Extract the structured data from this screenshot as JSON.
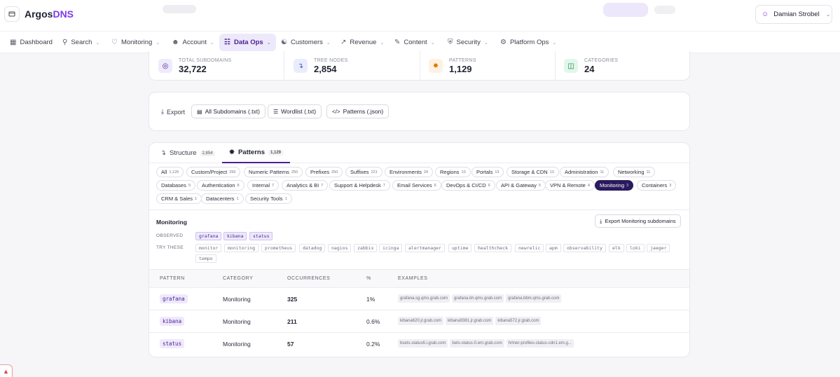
{
  "app": {
    "brand_main": "Argos",
    "brand_accent": "DNS"
  },
  "user": {
    "name": "Damian Strobel"
  },
  "nav": [
    {
      "label": "Dashboard",
      "icon": "dashboard-icon"
    },
    {
      "label": "Search",
      "icon": "search-icon"
    },
    {
      "label": "Monitoring",
      "icon": "monitoring-icon"
    },
    {
      "label": "Account",
      "icon": "user-icon"
    },
    {
      "label": "Data Ops",
      "icon": "database-icon"
    },
    {
      "label": "Customers",
      "icon": "users-icon"
    },
    {
      "label": "Revenue",
      "icon": "chart-line-icon"
    },
    {
      "label": "Content",
      "icon": "pen-icon"
    },
    {
      "label": "Security",
      "icon": "shield-icon"
    },
    {
      "label": "Platform Ops",
      "icon": "gear-icon"
    }
  ],
  "stats": [
    {
      "label": "TOTAL SUBDOMAINS",
      "value": "32,722"
    },
    {
      "label": "TREE NODES",
      "value": "2,854"
    },
    {
      "label": "PATTERNS",
      "value": "1,129"
    },
    {
      "label": "CATEGORIES",
      "value": "24"
    }
  ],
  "export": {
    "label": "Export",
    "buttons": [
      "All Subdomains (.txt)",
      "Wordlist (.txt)",
      "Patterns (.json)"
    ]
  },
  "tabs": [
    {
      "label": "Structure",
      "count": "2,854"
    },
    {
      "label": "Patterns",
      "count": "1,129"
    }
  ],
  "categories": [
    {
      "label": "All",
      "count": "1,129"
    },
    {
      "label": "Custom/Project",
      "count": "250"
    },
    {
      "label": "Numeric Patterns",
      "count": "250"
    },
    {
      "label": "Prefixes",
      "count": "250"
    },
    {
      "label": "Suffixes",
      "count": "221"
    },
    {
      "label": "Environments",
      "count": "24"
    },
    {
      "label": "Regions",
      "count": "10"
    },
    {
      "label": "Portals",
      "count": "13"
    },
    {
      "label": "Storage & CDN",
      "count": "13"
    },
    {
      "label": "Administration",
      "count": "11"
    },
    {
      "label": "Networking",
      "count": "11"
    },
    {
      "label": "Databases",
      "count": "9"
    },
    {
      "label": "Authentication",
      "count": "8"
    },
    {
      "label": "Internal",
      "count": "7"
    },
    {
      "label": "Analytics & BI",
      "count": "7"
    },
    {
      "label": "Support & Helpdesk",
      "count": "7"
    },
    {
      "label": "Email Services",
      "count": "6"
    },
    {
      "label": "DevOps & CI/CD",
      "count": "6"
    },
    {
      "label": "API & Gateway",
      "count": "5"
    },
    {
      "label": "VPN & Remote",
      "count": "4"
    },
    {
      "label": "Monitoring",
      "count": "3"
    },
    {
      "label": "Containers",
      "count": "3"
    },
    {
      "label": "CRM & Sales",
      "count": "1"
    },
    {
      "label": "Datacenters",
      "count": "1"
    },
    {
      "label": "Security Tools",
      "count": "1"
    }
  ],
  "selected": {
    "title": "Monitoring",
    "export_label": "Export Monitoring subdomains",
    "observed_label": "OBSERVED",
    "try_label": "TRY THESE",
    "observed": [
      "grafana",
      "kibana",
      "status"
    ],
    "try": [
      "monitor",
      "monitoring",
      "prometheus",
      "datadog",
      "nagios",
      "zabbix",
      "icinga",
      "alertmanager",
      "uptime",
      "healthcheck",
      "newrelic",
      "apm",
      "observability",
      "elk",
      "loki",
      "jaeger",
      "tempo"
    ]
  },
  "table": {
    "headers": [
      "PATTERN",
      "CATEGORY",
      "OCCURRENCES",
      "%",
      "EXAMPLES"
    ],
    "rows": [
      {
        "pattern": "grafana",
        "category": "Monitoring",
        "occurrences": "325",
        "pct": "1%",
        "examples": [
          "grafana.sg.qms.grab.com",
          "grafana.kh.qms.grab.com",
          "grafana.bbm.qms.grab.com"
        ]
      },
      {
        "pattern": "kibana",
        "category": "Monitoring",
        "occurrences": "211",
        "pct": "0.6%",
        "examples": [
          "kibana620.jr.grab.com",
          "kibana9381.jr.grab.com",
          "kibana572.jr.grab.com"
        ]
      },
      {
        "pattern": "status",
        "category": "Monitoring",
        "occurrences": "57",
        "pct": "0.2%",
        "examples": [
          "bsets-status6.i.grab.com",
          "bets-status-0.em.grab.com",
          "hrtner-profiles-status-cdn1.em.g..."
        ]
      }
    ]
  }
}
